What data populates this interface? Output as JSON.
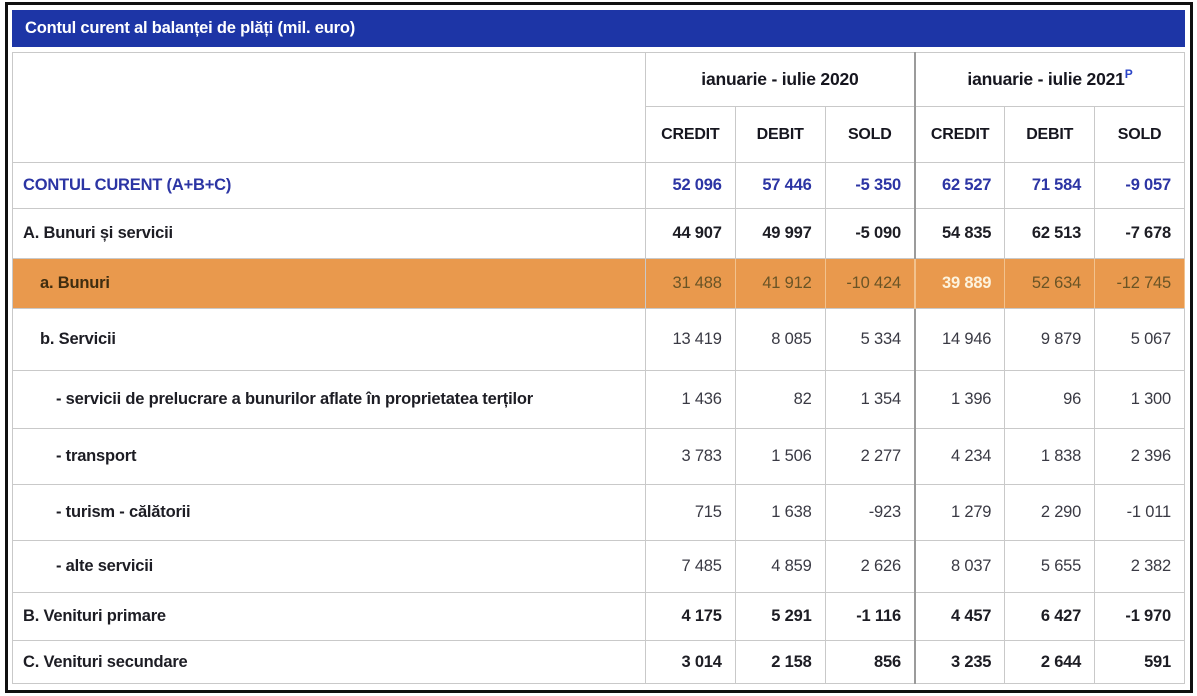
{
  "title": "Contul curent al balanței de plăți (mil. euro)",
  "table": {
    "group_headers": [
      {
        "label": "ianuarie - iulie 2020",
        "sup": ""
      },
      {
        "label": "ianuarie - iulie 2021",
        "sup": "P"
      }
    ],
    "column_headers": [
      "CREDIT",
      "DEBIT",
      "SOLD",
      "CREDIT",
      "DEBIT",
      "SOLD"
    ],
    "rows": [
      {
        "label": "CONTUL CURENT (A+B+C)",
        "values": [
          "52 096",
          "57 446",
          "-5 350",
          "62 527",
          "71 584",
          "-9 057"
        ]
      },
      {
        "label": "A. Bunuri și servicii",
        "values": [
          "44 907",
          "49 997",
          "-5 090",
          "54 835",
          "62 513",
          "-7 678"
        ]
      },
      {
        "label": "a. Bunuri",
        "values": [
          "31 488",
          "41 912",
          "-10 424",
          "39 889",
          "52 634",
          "-12 745"
        ]
      },
      {
        "label": "b. Servicii",
        "values": [
          "13 419",
          "8 085",
          "5 334",
          "14 946",
          "9 879",
          "5 067"
        ]
      },
      {
        "label": "- servicii de prelucrare a bunurilor aflate în proprietatea terților",
        "values": [
          "1 436",
          "82",
          "1 354",
          "1 396",
          "96",
          "1 300"
        ]
      },
      {
        "label": "- transport",
        "values": [
          "3 783",
          "1 506",
          "2 277",
          "4 234",
          "1 838",
          "2 396"
        ]
      },
      {
        "label": "- turism - călătorii",
        "values": [
          "715",
          "1 638",
          "-923",
          "1 279",
          "2 290",
          "-1 011"
        ]
      },
      {
        "label": "- alte servicii",
        "values": [
          "7 485",
          "4 859",
          "2 626",
          "8 037",
          "5 655",
          "2 382"
        ]
      },
      {
        "label": "B. Venituri primare",
        "values": [
          "4 175",
          "5 291",
          "-1 116",
          "4 457",
          "6 427",
          "-1 970"
        ]
      },
      {
        "label": "C. Venituri secundare",
        "values": [
          "3 014",
          "2 158",
          "856",
          "3 235",
          "2 644",
          "591"
        ]
      }
    ]
  },
  "colors": {
    "title_bar": "#1d35a6",
    "title_text": "#ffffff",
    "total_row_text": "#2c35a4",
    "highlight_row_bg": "#e9994d",
    "highlight_bright_text": "#fdf3dd",
    "gridline": "#c9c9c9",
    "frame_border": "#101010",
    "superscript": "#2b45c8"
  }
}
